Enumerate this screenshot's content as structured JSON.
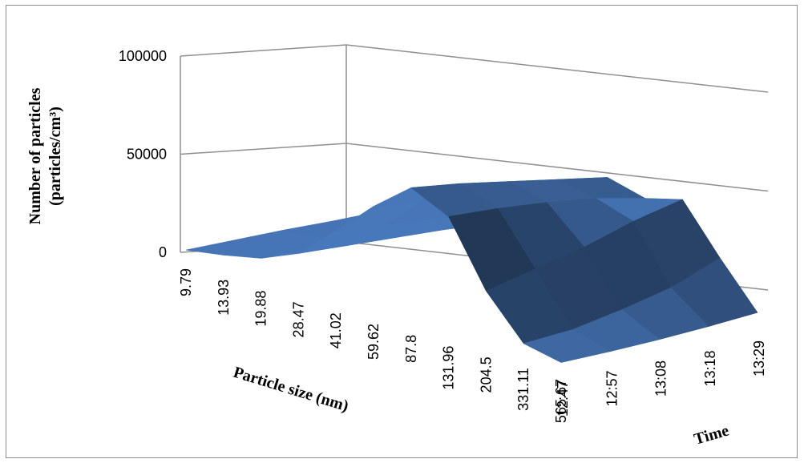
{
  "chart_data": {
    "type": "surface",
    "title": "",
    "xlabel": "Particle size (nm)",
    "ylabel_line1": "Number of particles",
    "ylabel_line2": "(particles/cm³)",
    "zlabel": "Time",
    "particle_sizes": [
      "9.79",
      "13.93",
      "19.88",
      "28.47",
      "41.02",
      "59.62",
      "87.8",
      "131.96",
      "204.5",
      "331.11",
      "565.67"
    ],
    "times": [
      "12:47",
      "12:57",
      "13:08",
      "13:18",
      "13:29"
    ],
    "y_ticks": [
      "0",
      "50000",
      "100000"
    ],
    "ylim": [
      0,
      100000
    ],
    "grid": true,
    "color": "#4a7bc0",
    "values": [
      [
        2000,
        2000,
        2000,
        1500,
        1500
      ],
      [
        5000,
        4500,
        4500,
        4000,
        4000
      ],
      [
        9000,
        8500,
        8000,
        7500,
        7000
      ],
      [
        17000,
        16000,
        15000,
        14000,
        12000
      ],
      [
        34000,
        32000,
        30000,
        27000,
        24000
      ],
      [
        52000,
        50000,
        46000,
        43000,
        38000
      ],
      [
        67000,
        64000,
        60000,
        56000,
        52000
      ],
      [
        58000,
        57000,
        55000,
        52000,
        47000
      ],
      [
        26000,
        32000,
        38000,
        46000,
        52000
      ],
      [
        5000,
        7000,
        12000,
        18000,
        28000
      ],
      [
        1000,
        1500,
        2500,
        4000,
        6000
      ]
    ]
  }
}
